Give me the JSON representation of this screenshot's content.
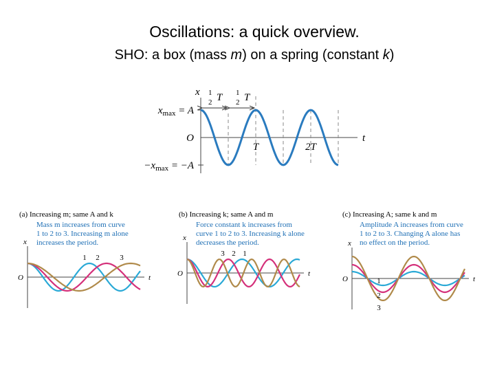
{
  "title": "Oscillations: a quick overview.",
  "subtitle": [
    "SHO: a box (mass ",
    "m",
    ") on a spring (constant ",
    "k",
    ")"
  ],
  "main_figure": {
    "x_axis": "x",
    "t_axis": "t",
    "origin": "O",
    "half_num": "1",
    "half_den": "2",
    "half_T": "T",
    "xmax_x": "x",
    "xmax_sub": "max",
    "xmax_rest": " = A",
    "neg_x": "−x",
    "neg_sub": "max",
    "neg_rest": " = −A",
    "tick_T": "T",
    "tick_2T": "2T"
  },
  "panels": [
    {
      "heading": "(a) Increasing m; same A and k",
      "note": [
        "Mass m increases from curve",
        "1 to 2 to 3. Increasing m alone",
        "increases the period."
      ],
      "x": "x",
      "t": "t",
      "o": "O",
      "curves": [
        "1",
        "2",
        "3"
      ]
    },
    {
      "heading": "(b) Increasing k; same A and m",
      "note": [
        "Force constant k increases from",
        "curve 1 to 2 to 3. Increasing k alone",
        "decreases the period."
      ],
      "x": "x",
      "t": "t",
      "o": "O",
      "curves": [
        "3",
        "2",
        "1"
      ]
    },
    {
      "heading": "(c) Increasing A; same k and m",
      "note": [
        "Amplitude A increases from curve",
        "1 to 2 to 3. Changing A alone has",
        "no effect on the period."
      ],
      "x": "x",
      "t": "t",
      "o": "O",
      "curves": [
        "1",
        "2",
        "3"
      ]
    }
  ]
}
